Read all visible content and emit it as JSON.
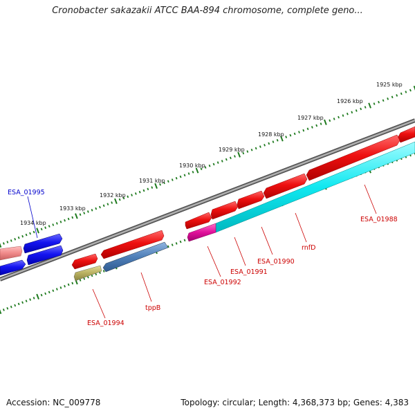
{
  "title": "Cronobacter sakazakii ATCC BAA-894 chromosome, complete geno...",
  "footer": {
    "accession": "Accession: NC_009778",
    "stats": "Topology: circular; Length: 4,368,373 bp; Genes: 4,383"
  },
  "scale_labels": [
    "1925 kbp",
    "1926 kbp",
    "1927 kbp",
    "1928 kbp",
    "1929 kbp",
    "1930 kbp",
    "1931 kbp",
    "1932 kbp",
    "1933 kbp",
    "1934 kbp"
  ],
  "gene_labels": [
    {
      "text": "ESA_01995",
      "color": "#0000cc"
    },
    {
      "text": "ESA_01994",
      "color": "#cc0000"
    },
    {
      "text": "tppB",
      "color": "#cc0000"
    },
    {
      "text": "ESA_01992",
      "color": "#cc0000"
    },
    {
      "text": "ESA_01991",
      "color": "#cc0000"
    },
    {
      "text": "ESA_01990",
      "color": "#cc0000"
    },
    {
      "text": "rnfD",
      "color": "#cc0000"
    },
    {
      "text": "ESA_01988",
      "color": "#cc0000"
    }
  ],
  "colors": {
    "backbone": "#7a7a7a",
    "tick": "#1e7a1e",
    "gene_red": "#e01010",
    "gene_blue": "#1010e0",
    "gene_pink": "#f08a8a",
    "gene_cyan": "#10e8f0",
    "gene_steel": "#4f7fb8",
    "gene_olive": "#b8b060",
    "gene_magenta": "#e0109a"
  }
}
